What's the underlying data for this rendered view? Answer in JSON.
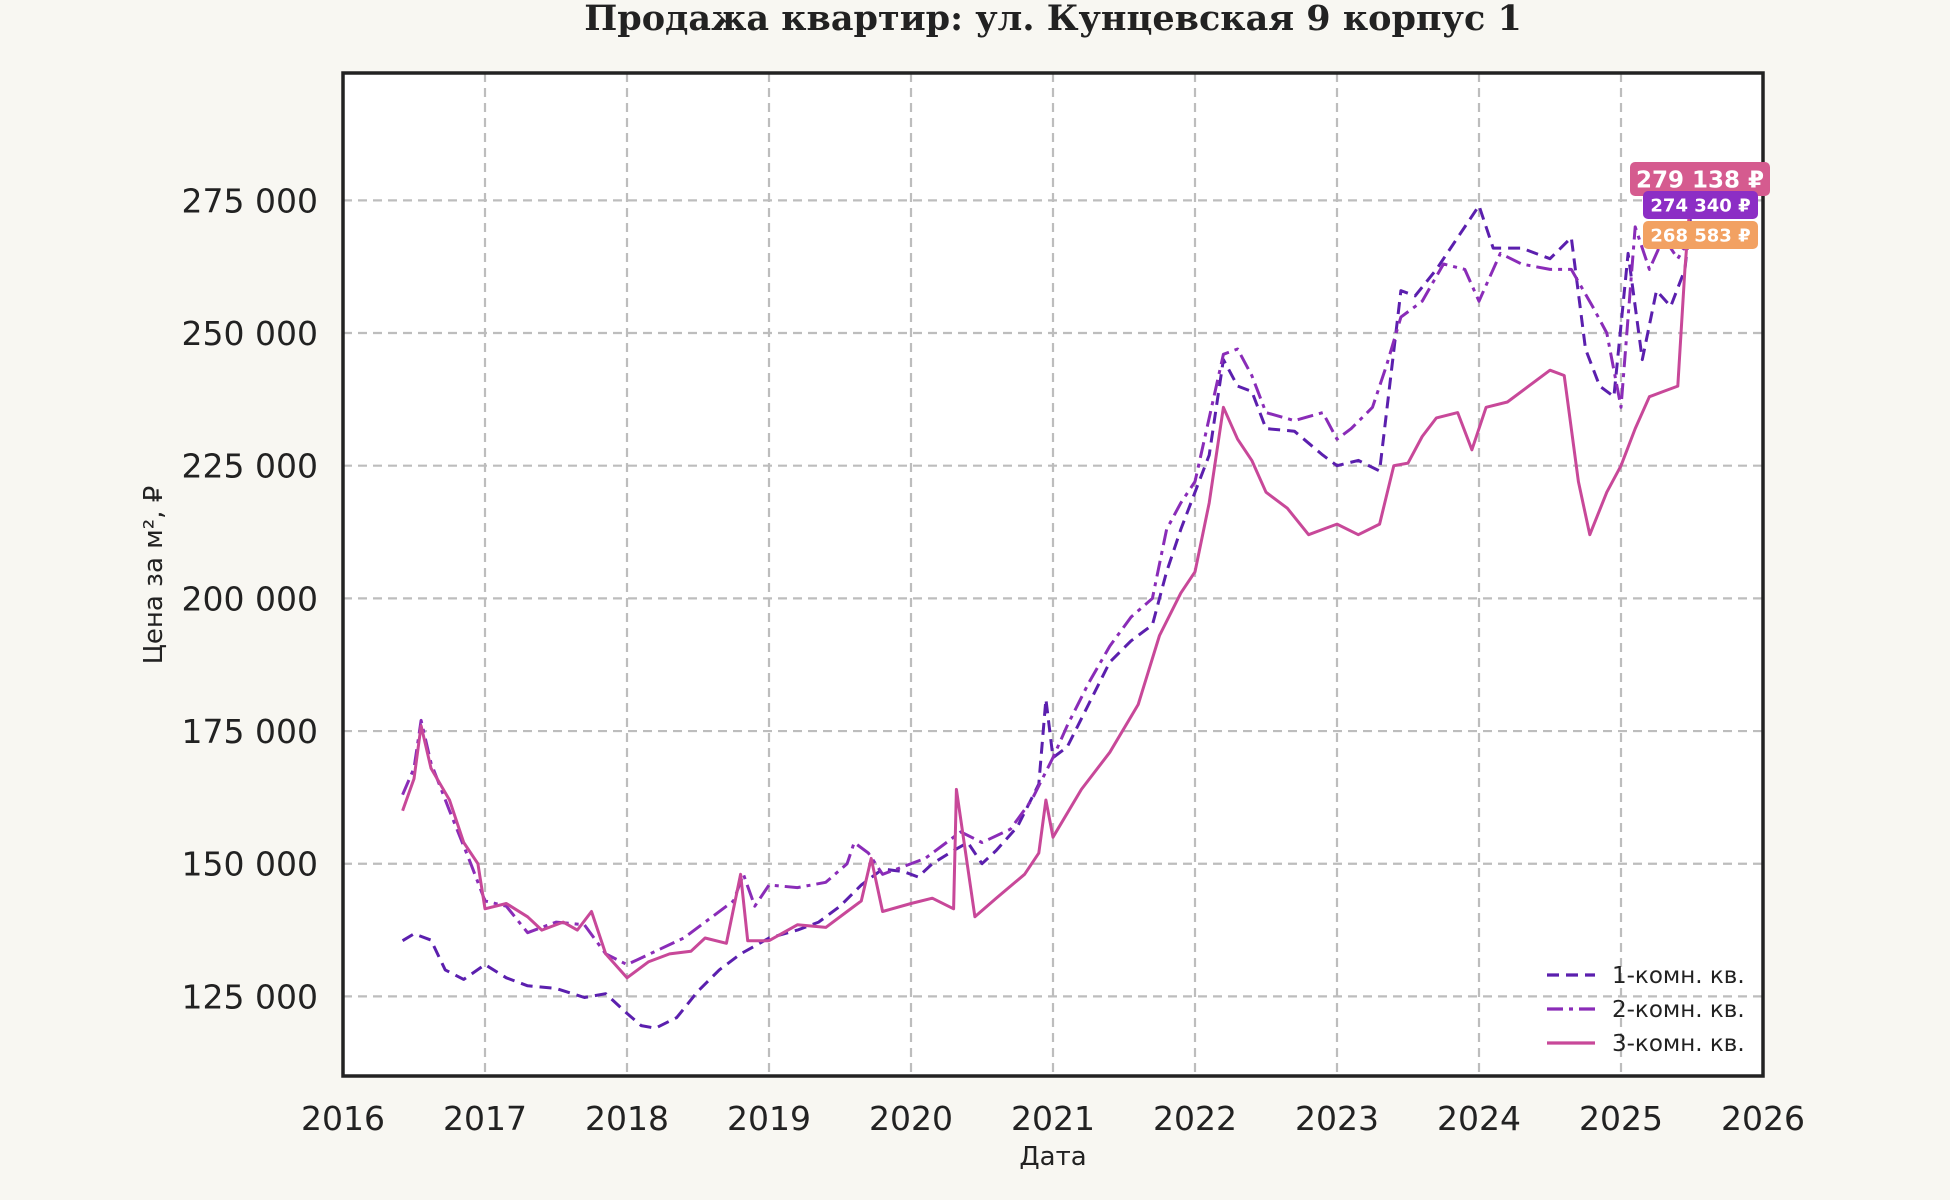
{
  "chart_data": {
    "type": "line",
    "title": "Продажа квартир: ул. Кунцевская 9 корпус 1",
    "xlabel": "Дата",
    "ylabel": "Цена за м², ₽",
    "x_ticks": [
      "2016",
      "2017",
      "2018",
      "2019",
      "2020",
      "2021",
      "2022",
      "2023",
      "2024",
      "2025",
      "2026"
    ],
    "y_ticks": [
      "125 000",
      "150 000",
      "175 000",
      "200 000",
      "225 000",
      "250 000",
      "275 000"
    ],
    "xlim": [
      2016.0,
      2026.0
    ],
    "ylim": [
      110000,
      299000
    ],
    "grid": true,
    "legend_position": "bottom-right",
    "series": [
      {
        "name": "1-комн. кв.",
        "style": "dashed",
        "color": "#5b1fae",
        "last_value_label": "274 340 ₽",
        "points": [
          [
            2016.42,
            135500
          ],
          [
            2016.5,
            136800
          ],
          [
            2016.62,
            135600
          ],
          [
            2016.72,
            130000
          ],
          [
            2016.85,
            128200
          ],
          [
            2017.0,
            131000
          ],
          [
            2017.15,
            128500
          ],
          [
            2017.3,
            127000
          ],
          [
            2017.5,
            126500
          ],
          [
            2017.7,
            124800
          ],
          [
            2017.85,
            125500
          ],
          [
            2018.0,
            121800
          ],
          [
            2018.1,
            119500
          ],
          [
            2018.2,
            119000
          ],
          [
            2018.35,
            121000
          ],
          [
            2018.5,
            126000
          ],
          [
            2018.65,
            130000
          ],
          [
            2018.8,
            133000
          ],
          [
            2019.0,
            136000
          ],
          [
            2019.2,
            137500
          ],
          [
            2019.35,
            139000
          ],
          [
            2019.5,
            142000
          ],
          [
            2019.65,
            146000
          ],
          [
            2019.8,
            149000
          ],
          [
            2019.95,
            148500
          ],
          [
            2020.05,
            147500
          ],
          [
            2020.15,
            150000
          ],
          [
            2020.3,
            152500
          ],
          [
            2020.4,
            154000
          ],
          [
            2020.5,
            150000
          ],
          [
            2020.6,
            152500
          ],
          [
            2020.75,
            157000
          ],
          [
            2020.9,
            165000
          ],
          [
            2020.95,
            181000
          ],
          [
            2021.0,
            170000
          ],
          [
            2021.1,
            172000
          ],
          [
            2021.25,
            180000
          ],
          [
            2021.4,
            188000
          ],
          [
            2021.55,
            192000
          ],
          [
            2021.7,
            195000
          ],
          [
            2021.8,
            205000
          ],
          [
            2021.9,
            213000
          ],
          [
            2022.0,
            220000
          ],
          [
            2022.1,
            227000
          ],
          [
            2022.2,
            245000
          ],
          [
            2022.3,
            240000
          ],
          [
            2022.4,
            239000
          ],
          [
            2022.5,
            232000
          ],
          [
            2022.7,
            231500
          ],
          [
            2022.9,
            227000
          ],
          [
            2023.0,
            225000
          ],
          [
            2023.15,
            226000
          ],
          [
            2023.3,
            224000
          ],
          [
            2023.45,
            258000
          ],
          [
            2023.55,
            257000
          ],
          [
            2023.7,
            262000
          ],
          [
            2023.85,
            268000
          ],
          [
            2024.0,
            274000
          ],
          [
            2024.1,
            266000
          ],
          [
            2024.3,
            266000
          ],
          [
            2024.5,
            264000
          ],
          [
            2024.65,
            268000
          ],
          [
            2024.75,
            247000
          ],
          [
            2024.85,
            240000
          ],
          [
            2024.95,
            238000
          ],
          [
            2025.05,
            265000
          ],
          [
            2025.15,
            245000
          ],
          [
            2025.25,
            258000
          ],
          [
            2025.35,
            255000
          ],
          [
            2025.45,
            262000
          ],
          [
            2025.5,
            274340
          ]
        ]
      },
      {
        "name": "2-комн. кв.",
        "style": "dashdot",
        "color": "#8a2cb8",
        "last_value_label": "268 583 ₽",
        "points": [
          [
            2016.42,
            163000
          ],
          [
            2016.5,
            168000
          ],
          [
            2016.55,
            177000
          ],
          [
            2016.62,
            169000
          ],
          [
            2016.75,
            160000
          ],
          [
            2016.9,
            150000
          ],
          [
            2017.0,
            143000
          ],
          [
            2017.15,
            142000
          ],
          [
            2017.3,
            137000
          ],
          [
            2017.5,
            139000
          ],
          [
            2017.7,
            138500
          ],
          [
            2017.85,
            133000
          ],
          [
            2018.0,
            131000
          ],
          [
            2018.2,
            133500
          ],
          [
            2018.4,
            136000
          ],
          [
            2018.6,
            140000
          ],
          [
            2018.75,
            143000
          ],
          [
            2018.82,
            148000
          ],
          [
            2018.9,
            142000
          ],
          [
            2019.0,
            146000
          ],
          [
            2019.2,
            145500
          ],
          [
            2019.4,
            146500
          ],
          [
            2019.55,
            150000
          ],
          [
            2019.6,
            154000
          ],
          [
            2019.7,
            152000
          ],
          [
            2019.8,
            148000
          ],
          [
            2019.95,
            149500
          ],
          [
            2020.1,
            151000
          ],
          [
            2020.25,
            154000
          ],
          [
            2020.35,
            156000
          ],
          [
            2020.5,
            154000
          ],
          [
            2020.7,
            156500
          ],
          [
            2020.85,
            162000
          ],
          [
            2021.0,
            170000
          ],
          [
            2021.1,
            176000
          ],
          [
            2021.25,
            184000
          ],
          [
            2021.4,
            191000
          ],
          [
            2021.55,
            196500
          ],
          [
            2021.7,
            200000
          ],
          [
            2021.8,
            213000
          ],
          [
            2021.9,
            218000
          ],
          [
            2022.0,
            222000
          ],
          [
            2022.1,
            234000
          ],
          [
            2022.2,
            246000
          ],
          [
            2022.3,
            247000
          ],
          [
            2022.4,
            242000
          ],
          [
            2022.5,
            235000
          ],
          [
            2022.7,
            233500
          ],
          [
            2022.9,
            235000
          ],
          [
            2023.0,
            230000
          ],
          [
            2023.1,
            232000
          ],
          [
            2023.25,
            236000
          ],
          [
            2023.35,
            244000
          ],
          [
            2023.45,
            253000
          ],
          [
            2023.6,
            256000
          ],
          [
            2023.75,
            263000
          ],
          [
            2023.9,
            262000
          ],
          [
            2024.0,
            256000
          ],
          [
            2024.15,
            265000
          ],
          [
            2024.3,
            263000
          ],
          [
            2024.5,
            262000
          ],
          [
            2024.65,
            262000
          ],
          [
            2024.8,
            255000
          ],
          [
            2024.9,
            250000
          ],
          [
            2025.0,
            236000
          ],
          [
            2025.1,
            270000
          ],
          [
            2025.2,
            262000
          ],
          [
            2025.3,
            268000
          ],
          [
            2025.4,
            264000
          ],
          [
            2025.5,
            268583
          ]
        ]
      },
      {
        "name": "3-комн. кв.",
        "style": "solid",
        "color": "#c84899",
        "last_value_label": "279 138 ₽",
        "points": [
          [
            2016.42,
            160000
          ],
          [
            2016.5,
            166000
          ],
          [
            2016.55,
            176000
          ],
          [
            2016.62,
            168000
          ],
          [
            2016.75,
            162000
          ],
          [
            2016.85,
            154000
          ],
          [
            2016.95,
            150000
          ],
          [
            2017.0,
            141500
          ],
          [
            2017.15,
            142500
          ],
          [
            2017.3,
            140000
          ],
          [
            2017.4,
            137500
          ],
          [
            2017.55,
            139000
          ],
          [
            2017.65,
            137500
          ],
          [
            2017.75,
            141000
          ],
          [
            2017.85,
            133000
          ],
          [
            2018.0,
            128500
          ],
          [
            2018.15,
            131500
          ],
          [
            2018.3,
            133000
          ],
          [
            2018.45,
            133500
          ],
          [
            2018.55,
            136000
          ],
          [
            2018.7,
            135000
          ],
          [
            2018.8,
            148000
          ],
          [
            2018.85,
            135500
          ],
          [
            2019.0,
            135500
          ],
          [
            2019.2,
            138500
          ],
          [
            2019.4,
            138000
          ],
          [
            2019.55,
            141000
          ],
          [
            2019.65,
            143000
          ],
          [
            2019.72,
            151000
          ],
          [
            2019.8,
            141000
          ],
          [
            2020.0,
            142500
          ],
          [
            2020.15,
            143500
          ],
          [
            2020.3,
            141500
          ],
          [
            2020.32,
            164000
          ],
          [
            2020.45,
            140000
          ],
          [
            2020.6,
            143500
          ],
          [
            2020.8,
            148000
          ],
          [
            2020.9,
            152000
          ],
          [
            2020.95,
            162000
          ],
          [
            2021.0,
            155000
          ],
          [
            2021.2,
            164000
          ],
          [
            2021.4,
            171000
          ],
          [
            2021.6,
            180000
          ],
          [
            2021.75,
            193000
          ],
          [
            2021.9,
            201000
          ],
          [
            2022.0,
            205000
          ],
          [
            2022.1,
            218000
          ],
          [
            2022.2,
            236000
          ],
          [
            2022.3,
            230000
          ],
          [
            2022.4,
            226000
          ],
          [
            2022.5,
            220000
          ],
          [
            2022.65,
            217000
          ],
          [
            2022.8,
            212000
          ],
          [
            2022.9,
            213000
          ],
          [
            2023.0,
            214000
          ],
          [
            2023.15,
            212000
          ],
          [
            2023.3,
            214000
          ],
          [
            2023.4,
            225000
          ],
          [
            2023.5,
            225500
          ],
          [
            2023.6,
            230500
          ],
          [
            2023.7,
            234000
          ],
          [
            2023.85,
            235000
          ],
          [
            2023.95,
            228000
          ],
          [
            2024.05,
            236000
          ],
          [
            2024.2,
            237000
          ],
          [
            2024.35,
            240000
          ],
          [
            2024.5,
            243000
          ],
          [
            2024.6,
            242000
          ],
          [
            2024.7,
            222000
          ],
          [
            2024.78,
            212000
          ],
          [
            2024.9,
            220000
          ],
          [
            2025.0,
            225000
          ],
          [
            2025.1,
            232000
          ],
          [
            2025.2,
            238000
          ],
          [
            2025.3,
            239000
          ],
          [
            2025.4,
            240000
          ],
          [
            2025.45,
            262000
          ],
          [
            2025.5,
            279138
          ]
        ]
      }
    ]
  },
  "badges": [
    {
      "text": "279 138 ₽",
      "color": "#d55b8f"
    },
    {
      "text": "274 340 ₽",
      "color": "#8c2ec5"
    },
    {
      "text": "268 583 ₽",
      "color": "#f2a162"
    }
  ]
}
